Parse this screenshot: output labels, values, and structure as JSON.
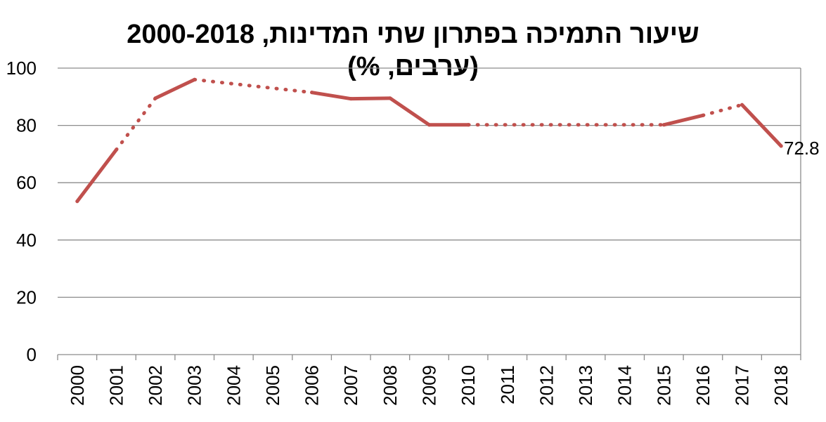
{
  "chart_data": {
    "type": "line",
    "title_line1": "שיעור התמיכה בפתרון שתי המדינות, 2000-2018",
    "title_line2": "(ערבים, %)",
    "xlabel": "",
    "ylabel": "",
    "ylim": [
      0,
      100
    ],
    "yticks": [
      0,
      20,
      40,
      60,
      80,
      100
    ],
    "grid": true,
    "categories": [
      "2000",
      "2001",
      "2002",
      "2003",
      "2004",
      "2005",
      "2006",
      "2007",
      "2008",
      "2009",
      "2010",
      "2011",
      "2012",
      "2013",
      "2014",
      "2015",
      "2016",
      "2017",
      "2018"
    ],
    "series": [
      {
        "color": "#C0504D",
        "values": [
          53.5,
          71.5,
          89.5,
          96,
          null,
          null,
          91.5,
          89.3,
          89.5,
          80.2,
          80.2,
          null,
          null,
          null,
          null,
          80.2,
          83.5,
          87.2,
          72.8
        ]
      }
    ],
    "interpolated_segments": [
      [
        1,
        2
      ],
      [
        3,
        6
      ],
      [
        10,
        15
      ],
      [
        16,
        17
      ]
    ],
    "data_labels": [
      {
        "index": 18,
        "text": "72.8"
      }
    ]
  }
}
